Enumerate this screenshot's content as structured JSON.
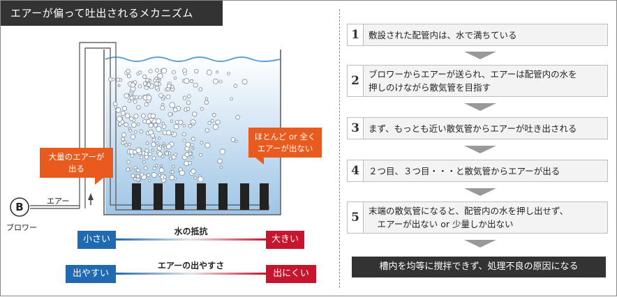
{
  "title": "エアーが偏って吐出されるメカニズム",
  "labels": {
    "air": "エアー",
    "blower_symbol": "B",
    "blower": "ブロワー",
    "callout_left_line1": "大量のエアーが",
    "callout_left_line2": "出る",
    "callout_right_line1": "ほとんど or 全く",
    "callout_right_line2": "エアーが出ない"
  },
  "scales": [
    {
      "title": "水の抵抗",
      "low": "小さい",
      "high": "大きい"
    },
    {
      "title": "エアーの出やすさ",
      "low": "出やすい",
      "high": "出にくい"
    }
  ],
  "colors": {
    "low": "#2169b0",
    "high": "#c6162f",
    "callout": "#e95a1f",
    "water_top": "#ffffff",
    "water_bottom": "#9ec5e6"
  },
  "steps": [
    {
      "num": "1",
      "line1": "敷設された配管内は、水で満ちている",
      "line2": ""
    },
    {
      "num": "2",
      "line1": "ブロワーからエアーが送られ、エアーは配管内の水を",
      "line2": "押しのけながら散気管を目指す"
    },
    {
      "num": "3",
      "line1": "まず、もっとも近い散気管からエアーが吐き出される",
      "line2": ""
    },
    {
      "num": "4",
      "line1": "２つ目、３つ目・・・と散気管からエアーが出る",
      "line2": ""
    },
    {
      "num": "5",
      "line1": "末端の散気管になると、配管内の水を押し出せず、",
      "line2": "　エアーが出ない or 少量しか出ない"
    }
  ],
  "result": "槽内を均等に撹拌できず、処理不良の原因になる"
}
